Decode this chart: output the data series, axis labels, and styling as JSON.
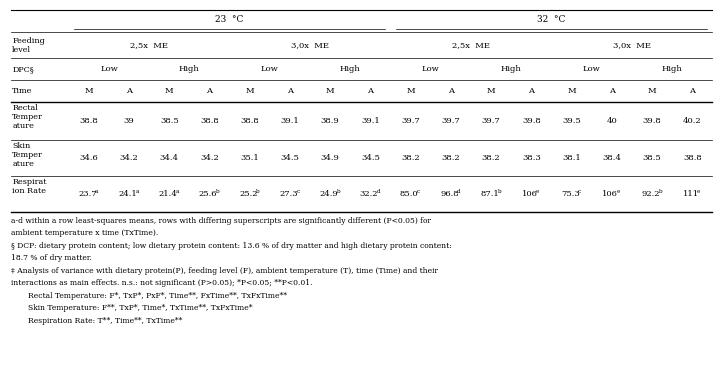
{
  "fig_width": 7.21,
  "fig_height": 3.87,
  "dpi": 100,
  "background_color": "#ffffff",
  "data_rows": [
    {
      "label": "Rectal\nTemper\nature",
      "values": [
        "38.8",
        "39",
        "38.5",
        "38.8",
        "38.8",
        "39.1",
        "38.9",
        "39.1",
        "39.7",
        "39.7",
        "39.7",
        "39.8",
        "39.5",
        "40",
        "39.8",
        "40.2"
      ],
      "superscripts": [
        "",
        "",
        "",
        "",
        "",
        "",
        "",
        "",
        "",
        "",
        "",
        "",
        "",
        "",
        "",
        ""
      ]
    },
    {
      "label": "Skin\nTemper\nature",
      "values": [
        "34.6",
        "34.2",
        "34.4",
        "34.2",
        "35.1",
        "34.5",
        "34.9",
        "34.5",
        "38.2",
        "38.2",
        "38.2",
        "38.3",
        "38.1",
        "38.4",
        "38.5",
        "38.8"
      ],
      "superscripts": [
        "",
        "",
        "",
        "",
        "",
        "",
        "",
        "",
        "",
        "",
        "",
        "",
        "",
        "",
        "",
        ""
      ]
    },
    {
      "label": "Respirat\nion Rate",
      "values": [
        "23.7",
        "24.1",
        "21.4",
        "25.6",
        "25.2",
        "27.3",
        "24.9",
        "32.2",
        "85.0",
        "96.8",
        "87.1",
        "106",
        "75.3",
        "106",
        "92.2",
        "111"
      ],
      "superscripts": [
        "a",
        "a",
        "a",
        "b",
        "b",
        "c",
        "b",
        "d",
        "c",
        "d",
        "b",
        "e",
        "c",
        "e",
        "b",
        "e"
      ]
    }
  ],
  "footnotes": [
    "a-d within a row least-squares means, rows with differing superscripts are significantly different (P<0.05) for",
    "ambient temperature x time (TxTime).",
    "§ DCP: dietary protein content; low dietary protein content: 13.6 % of dry matter and high dietary protein content:",
    "18.7 % of dry matter.",
    "‡ Analysis of variance with dietary protein(P), feeding level (F), ambient temperature (T), time (Time) and their",
    "interactions as main effects. n.s.: not significant (P>0.05); *P<0.05; **P<0.01.",
    "Rectal Temperature: F*, TxP*, PxF*, Time**, FxTime**, TxFxTime**",
    "Skin Temperature: F**, TxP*, Time*, TxTime**, TxFxTime*",
    "Respiration Rate: T**, Time**, TxTime**"
  ],
  "footnote_indented": [
    false,
    false,
    false,
    false,
    false,
    false,
    true,
    true,
    true
  ]
}
